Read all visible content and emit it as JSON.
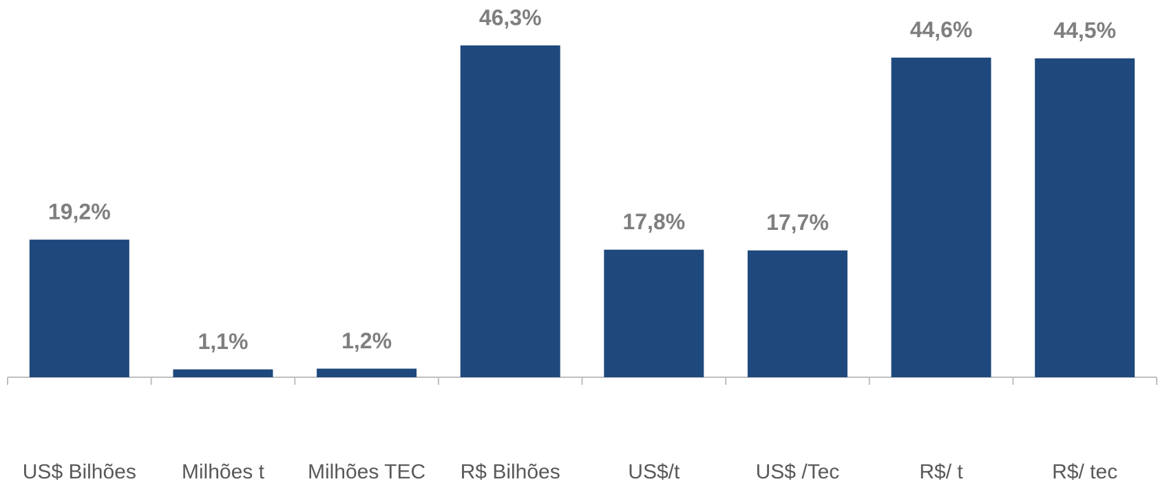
{
  "chart_data": {
    "type": "bar",
    "categories": [
      "US$ Bilhões",
      "Milhões t",
      "Milhões TEC",
      "R$ Bilhões",
      "US$/t",
      "US$ /Tec",
      "R$/ t",
      "R$/ tec"
    ],
    "values": [
      19.2,
      1.1,
      1.2,
      46.3,
      17.8,
      17.7,
      44.6,
      44.5
    ],
    "value_labels": [
      "19,2%",
      "1,1%",
      "1,2%",
      "46,3%",
      "17,8%",
      "17,7%",
      "44,6%",
      "44,5%"
    ],
    "color": "#1f497d"
  }
}
